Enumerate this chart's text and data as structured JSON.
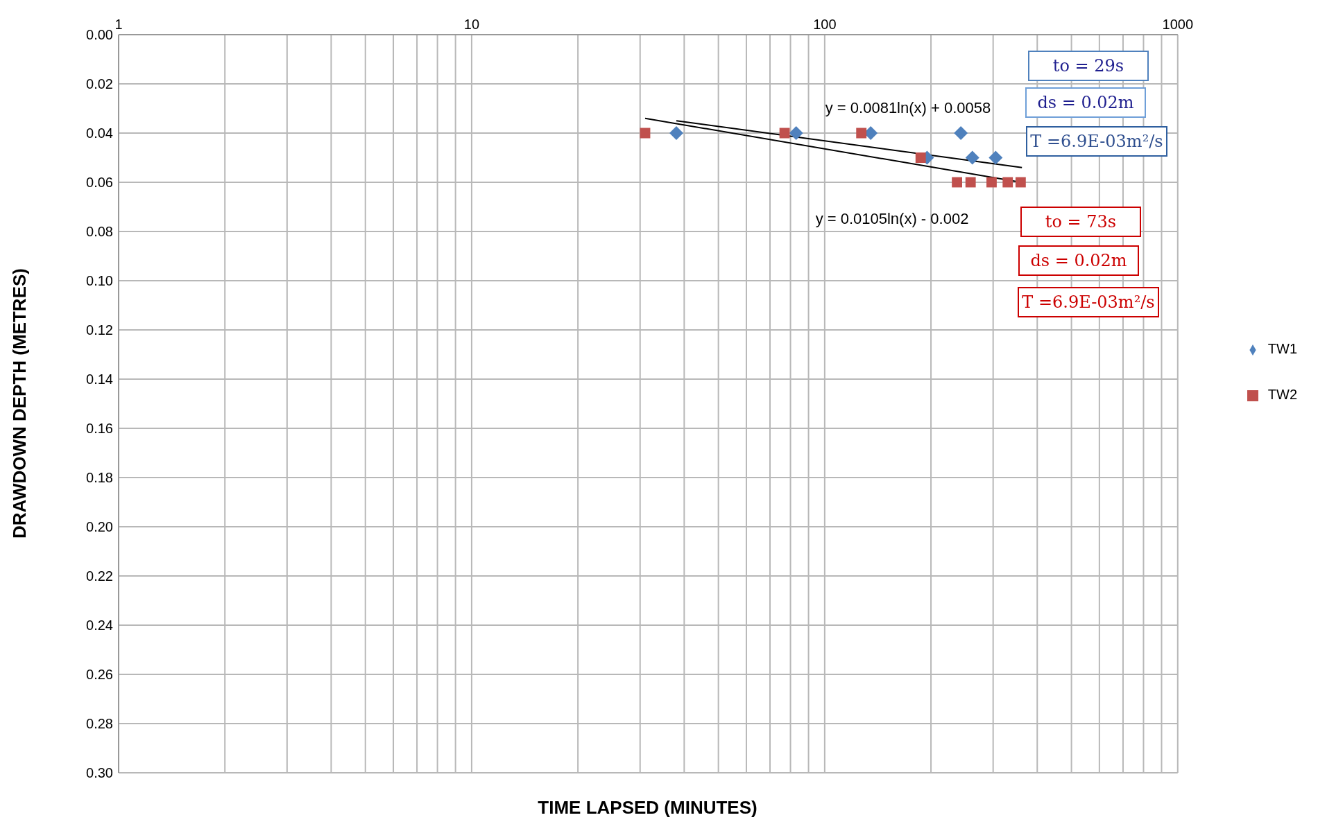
{
  "chart_data": {
    "type": "scatter",
    "xlabel": "TIME LAPSED (MINUTES)",
    "ylabel": "DRAWDOWN DEPTH (METRES)",
    "log": "x",
    "grid": true,
    "legend": "right",
    "xlim": [
      1,
      1000
    ],
    "xticks": [
      1,
      {
        "value": 2,
        "label": null
      },
      {
        "value": 3,
        "label": null
      },
      {
        "value": 4,
        "label": null
      },
      {
        "value": 5,
        "label": null
      },
      {
        "value": 6,
        "label": null
      },
      {
        "value": 7,
        "label": null
      },
      {
        "value": 8,
        "label": null
      },
      {
        "value": 9,
        "label": null
      },
      10,
      {
        "value": 20,
        "label": null
      },
      {
        "value": 30,
        "label": null
      },
      {
        "value": 40,
        "label": null
      },
      {
        "value": 50,
        "label": null
      },
      {
        "value": 60,
        "label": null
      },
      {
        "value": 70,
        "label": null
      },
      {
        "value": 80,
        "label": null
      },
      {
        "value": 90,
        "label": null
      },
      100,
      {
        "value": 200,
        "label": null
      },
      {
        "value": 300,
        "label": null
      },
      {
        "value": 400,
        "label": null
      },
      {
        "value": 500,
        "label": null
      },
      {
        "value": 600,
        "label": null
      },
      {
        "value": 700,
        "label": null
      },
      {
        "value": 800,
        "label": null
      },
      {
        "value": 900,
        "label": null
      },
      1000
    ],
    "ylim": [
      0.3,
      0
    ],
    "yticks": [
      {
        "value": 0,
        "label": "0.00"
      },
      {
        "value": 0.02,
        "label": "0.02"
      },
      {
        "value": 0.04,
        "label": "0.04"
      },
      {
        "value": 0.06,
        "label": "0.06"
      },
      {
        "value": 0.08,
        "label": "0.08"
      },
      {
        "value": 0.1,
        "label": "0.10"
      },
      {
        "value": 0.12,
        "label": "0.12"
      },
      {
        "value": 0.14,
        "label": "0.14"
      },
      {
        "value": 0.16,
        "label": "0.16"
      },
      {
        "value": 0.18,
        "label": "0.18"
      },
      {
        "value": 0.2,
        "label": "0.20"
      },
      {
        "value": 0.22,
        "label": "0.22"
      },
      {
        "value": 0.24,
        "label": "0.24"
      },
      {
        "value": 0.26,
        "label": "0.26"
      },
      {
        "value": 0.28,
        "label": "0.28"
      },
      {
        "value": 0.3,
        "label": "0.30"
      }
    ],
    "series": [
      {
        "name": "TW1",
        "marker": "diamond",
        "color": "#4f81bd",
        "x": [
          38,
          83,
          135,
          195,
          243,
          262,
          305
        ],
        "values": [
          0.04,
          0.04,
          0.04,
          0.05,
          0.04,
          0.05,
          0.05
        ]
      },
      {
        "name": "TW2",
        "marker": "square",
        "color": "#c0504d",
        "x": [
          31,
          77,
          127,
          187,
          237,
          259,
          297,
          330,
          359
        ],
        "values": [
          0.04,
          0.04,
          0.04,
          0.05,
          0.06,
          0.06,
          0.06,
          0.06,
          0.06
        ]
      },
      {
        "type": "line",
        "marker": "none",
        "color": "#000000",
        "x": [
          38,
          362
        ],
        "values": [
          0.035,
          0.054
        ]
      },
      {
        "type": "line",
        "marker": "none",
        "color": "#000000",
        "x": [
          31,
          360
        ],
        "values": [
          0.034,
          0.06
        ]
      }
    ],
    "annotations": [
      "y = 0.0081ln(x) + 0.0058",
      "y = 0.0105ln(x) - 0.002",
      "to = 29s",
      "ds = 0.02m",
      "T =6.9E-03m²/s",
      "to = 73s",
      "ds = 0.02m",
      "T =6.9E-03m²/s"
    ]
  }
}
